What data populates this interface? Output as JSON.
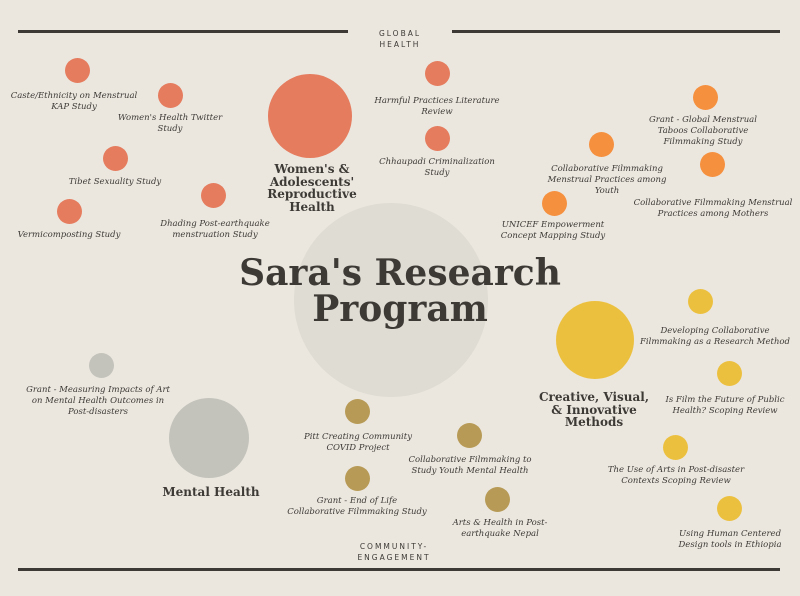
{
  "title_lines": [
    "Sara's Research",
    "Program"
  ],
  "headers": {
    "top": [
      "GLOBAL",
      "HEALTH"
    ],
    "bottom": [
      "COMMUNITY-",
      "ENGAGEMENT"
    ]
  },
  "colors": {
    "background": "#ebe7df",
    "reproductive": "#e57c5e",
    "creative_orange": "#f5903f",
    "creative_yellow": "#ecc03f",
    "mental": "#c3c3bb",
    "community": "#b79a55",
    "center": "#dfdcd4",
    "text": "#3d3a36"
  },
  "themes": {
    "reproductive": [
      "Women's &",
      "Adolescents'",
      "Reproductive",
      "Health"
    ],
    "creative": [
      "Creative, Visual,",
      "& Innovative",
      "Methods"
    ],
    "mental": [
      "Mental Health"
    ]
  },
  "projects": {
    "p1": [
      "Caste/Ethnicity on Menstrual",
      "KAP Study"
    ],
    "p2": [
      "Women's Health Twitter",
      "Study"
    ],
    "p3": [
      "Tibet Sexuality Study"
    ],
    "p4": [
      "Vermicomposting Study"
    ],
    "p5": [
      "Dhading Post-earthquake",
      "menstruation Study"
    ],
    "p6": [
      "Harmful Practices Literature",
      "Review"
    ],
    "p7": [
      "Chhaupadi Criminalization",
      "Study"
    ],
    "p8": [
      "Collaborative Filmmaking",
      "Menstrual Practices among",
      "Youth"
    ],
    "p9": [
      "UNICEF Empowerment",
      "Concept Mapping Study"
    ],
    "p10": [
      "Grant - Global Menstrual",
      "Taboos Collaborative",
      "Filmmaking Study"
    ],
    "p11": [
      "Collaborative Filmmaking Menstrual",
      "Practices among Mothers"
    ],
    "p12": [
      "Developing Collaborative",
      "Filmmaking as a Research Method"
    ],
    "p13": [
      "Is Film the Future of Public",
      "Health? Scoping Review"
    ],
    "p14": [
      "The Use of Arts in Post-disaster",
      "Contexts Scoping Review"
    ],
    "p15": [
      "Using Human Centered",
      "Design tools in Ethiopia"
    ],
    "p16": [
      "Grant - Measuring Impacts of Art",
      "on Mental Health Outcomes in",
      "Post-disasters"
    ],
    "p17": [
      "Pitt Creating Community",
      "COVID Project"
    ],
    "p18": [
      "Collaborative Filmmaking to",
      "Study Youth Mental Health"
    ],
    "p19": [
      "Grant - End of Life",
      "Collaborative Filmmaking Study"
    ],
    "p20": [
      "Arts & Health in Post-",
      "earthquake Nepal"
    ]
  }
}
